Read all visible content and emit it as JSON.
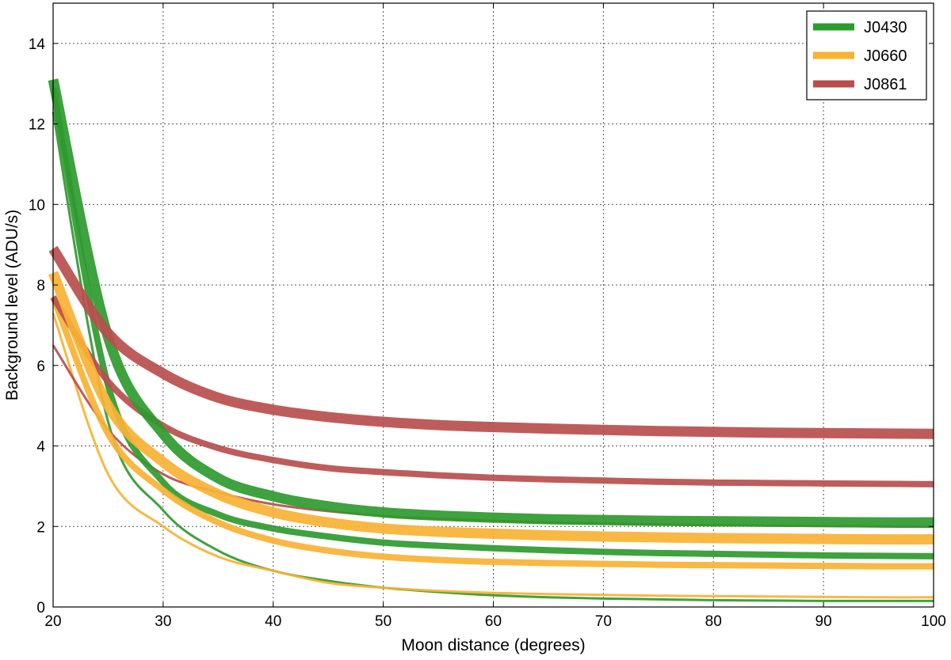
{
  "chart_data": {
    "type": "line",
    "title": "",
    "xlabel": "Moon distance (degrees)",
    "ylabel": "Background level (ADU/s)",
    "xlim": [
      20,
      100
    ],
    "ylim": [
      0,
      15
    ],
    "xticks": [
      20,
      30,
      40,
      50,
      60,
      70,
      80,
      90,
      100
    ],
    "yticks": [
      0,
      2,
      4,
      6,
      8,
      10,
      12,
      14
    ],
    "grid": true,
    "legend_position": "top-right",
    "x": [
      20,
      25,
      30,
      35,
      40,
      45,
      50,
      55,
      60,
      65,
      70,
      75,
      80,
      85,
      90,
      95,
      100
    ],
    "series": [
      {
        "name": "J0430",
        "color": "#2e9a2e",
        "line": "thick",
        "values": [
          13.1,
          6.7,
          4.3,
          3.2,
          2.75,
          2.5,
          2.35,
          2.27,
          2.22,
          2.18,
          2.16,
          2.14,
          2.13,
          2.12,
          2.11,
          2.1,
          2.1
        ]
      },
      {
        "name": "J0430",
        "color": "#2e9a2e",
        "line": "medium",
        "values": [
          12.9,
          5.5,
          3.1,
          2.3,
          1.95,
          1.75,
          1.6,
          1.52,
          1.46,
          1.41,
          1.37,
          1.34,
          1.32,
          1.3,
          1.28,
          1.27,
          1.26
        ]
      },
      {
        "name": "J0430",
        "color": "#2e9a2e",
        "line": "thin",
        "values": [
          12.3,
          4.6,
          2.4,
          1.4,
          0.9,
          0.65,
          0.48,
          0.37,
          0.29,
          0.24,
          0.21,
          0.19,
          0.17,
          0.16,
          0.15,
          0.15,
          0.15
        ]
      },
      {
        "name": "J0660",
        "color": "#f9b233",
        "line": "thick",
        "values": [
          8.3,
          5.0,
          3.6,
          2.8,
          2.35,
          2.1,
          1.95,
          1.87,
          1.82,
          1.78,
          1.75,
          1.73,
          1.71,
          1.7,
          1.69,
          1.68,
          1.68
        ]
      },
      {
        "name": "J0660",
        "color": "#f9b233",
        "line": "medium",
        "values": [
          7.7,
          4.3,
          2.9,
          2.1,
          1.65,
          1.4,
          1.25,
          1.17,
          1.12,
          1.09,
          1.07,
          1.05,
          1.04,
          1.03,
          1.02,
          1.01,
          1.01
        ]
      },
      {
        "name": "J0660",
        "color": "#f9b233",
        "line": "thin",
        "values": [
          7.3,
          3.3,
          2.0,
          1.25,
          0.9,
          0.6,
          0.48,
          0.4,
          0.35,
          0.32,
          0.3,
          0.28,
          0.27,
          0.26,
          0.25,
          0.24,
          0.24
        ]
      },
      {
        "name": "J0861",
        "color": "#b84e4e",
        "line": "thick",
        "values": [
          8.9,
          6.8,
          5.8,
          5.2,
          4.9,
          4.72,
          4.6,
          4.52,
          4.47,
          4.43,
          4.4,
          4.37,
          4.35,
          4.33,
          4.32,
          4.31,
          4.3
        ]
      },
      {
        "name": "J0861",
        "color": "#b84e4e",
        "line": "medium",
        "values": [
          7.7,
          5.6,
          4.5,
          3.95,
          3.65,
          3.45,
          3.35,
          3.27,
          3.21,
          3.17,
          3.14,
          3.11,
          3.09,
          3.08,
          3.07,
          3.06,
          3.05
        ]
      },
      {
        "name": "J0861",
        "color": "#b84e4e",
        "line": "thin",
        "values": [
          6.5,
          4.4,
          3.3,
          2.85,
          2.55,
          2.38,
          2.26,
          2.19,
          2.14,
          2.1,
          2.07,
          2.05,
          2.03,
          2.02,
          2.01,
          2.0,
          1.99
        ]
      }
    ],
    "legend": [
      {
        "label": "J0430",
        "color": "#2e9a2e"
      },
      {
        "label": "J0660",
        "color": "#f9b233"
      },
      {
        "label": "J0861",
        "color": "#b84e4e"
      }
    ]
  }
}
